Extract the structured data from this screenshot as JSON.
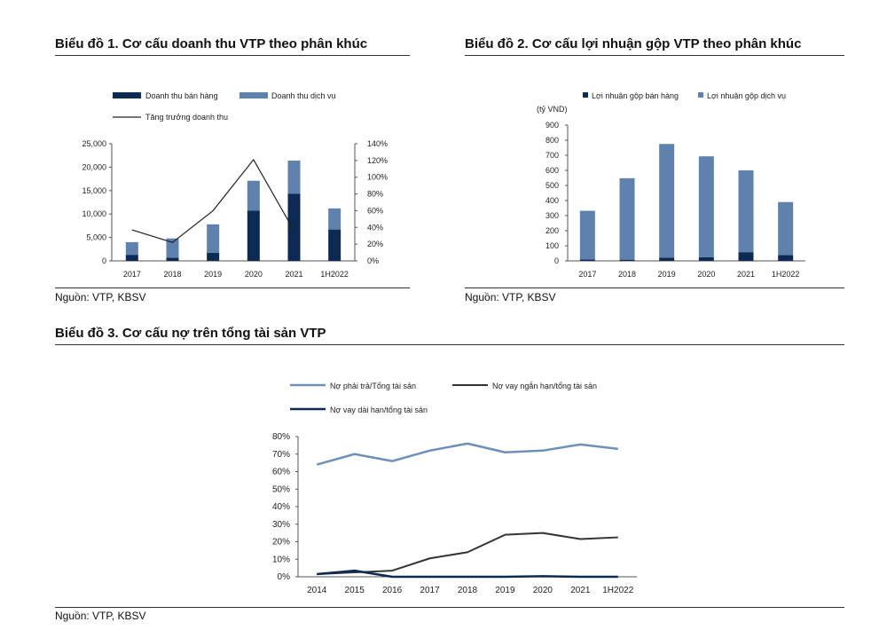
{
  "charts": [
    {
      "title": "Biểu đồ 1. Cơ cấu doanh thu VTP theo phân khúc",
      "source": "Nguồn: VTP, KBSV"
    },
    {
      "title": "Biểu đồ 2. Cơ cấu lợi nhuận gộp VTP theo phân khúc",
      "source": "Nguồn: VTP, KBSV"
    },
    {
      "title": "Biểu đồ 3. Cơ cấu nợ trên tổng tài sản VTP",
      "source": "Nguồn: VTP, KBSV"
    }
  ],
  "colors": {
    "dark": "#0d2a54",
    "light": "#5f81ad",
    "line_dark": "#333333"
  },
  "chart_data": [
    {
      "type": "bar",
      "stacked": true,
      "categories": [
        "2017",
        "2018",
        "2019",
        "2020",
        "2021",
        "1H2022"
      ],
      "series": [
        {
          "name": "Doanh thu bán hàng",
          "values": [
            1300,
            700,
            1700,
            10700,
            14300,
            6700
          ],
          "color": "#0d2a54"
        },
        {
          "name": "Doanh thu dịch vụ",
          "values": [
            2700,
            4100,
            6100,
            6400,
            7100,
            4500
          ],
          "color": "#5f81ad"
        }
      ],
      "secondary_series": [
        {
          "name": "Tăng trưởng doanh thu",
          "type": "line",
          "values": [
            37,
            22,
            60,
            121,
            36,
            null
          ],
          "color": "#222222"
        }
      ],
      "ylim": [
        0,
        25000
      ],
      "yticks": [
        "0",
        "5,000",
        "10,000",
        "15,000",
        "20,000",
        "25,000"
      ],
      "y2lim": [
        0,
        140
      ],
      "y2ticks": [
        "0%",
        "20%",
        "40%",
        "60%",
        "80%",
        "100%",
        "120%",
        "140%"
      ],
      "legend": "top-left"
    },
    {
      "type": "bar",
      "stacked": true,
      "categories": [
        "2017",
        "2018",
        "2019",
        "2020",
        "2021",
        "1H2022"
      ],
      "series": [
        {
          "name": "Lợi nhuận gộp bán hàng",
          "values": [
            10,
            8,
            22,
            25,
            58,
            38
          ],
          "color": "#0d2a54"
        },
        {
          "name": "Lợi nhuận gộp dịch vụ",
          "values": [
            322,
            540,
            753,
            668,
            542,
            352
          ],
          "color": "#5f81ad"
        }
      ],
      "ylabel": "(tỷ VND)",
      "ylim": [
        0,
        900
      ],
      "yticks": [
        "0",
        "100",
        "200",
        "300",
        "400",
        "500",
        "600",
        "700",
        "800",
        "900"
      ],
      "legend": "top-left"
    },
    {
      "type": "line",
      "categories": [
        "2014",
        "2015",
        "2016",
        "2017",
        "2018",
        "2019",
        "2020",
        "2021",
        "1H2022"
      ],
      "series": [
        {
          "name": "Nợ phải trả/Tổng tài sản",
          "values": [
            64,
            70,
            66,
            72,
            76,
            71,
            72,
            75.5,
            73
          ],
          "color": "#6f8fbb"
        },
        {
          "name": "Nợ vay ngắn hạn/tổng tài sản",
          "values": [
            1.5,
            2.5,
            3.5,
            10.5,
            14,
            24,
            25,
            21.5,
            22.5
          ],
          "color": "#333333"
        },
        {
          "name": "Nợ vay dài hạn/tổng tài sản",
          "values": [
            1.5,
            3.5,
            0,
            0,
            0,
            0,
            0.3,
            0,
            0
          ],
          "color": "#0d2a54"
        }
      ],
      "ylim": [
        0,
        80
      ],
      "yticks": [
        "0%",
        "10%",
        "20%",
        "30%",
        "40%",
        "50%",
        "60%",
        "70%",
        "80%"
      ],
      "legend": "top"
    }
  ]
}
